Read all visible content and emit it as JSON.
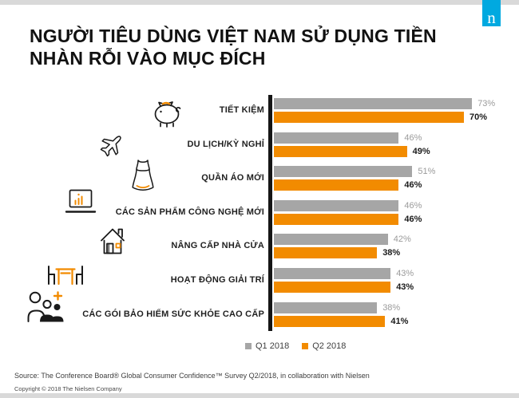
{
  "logo": {
    "letter": "n",
    "bg_color": "#00a9e0"
  },
  "title": {
    "line1": "NGƯỜI TIÊU DÙNG VIỆT NAM SỬ DỤNG TIỀN",
    "line2": "NHÀN RỖI VÀO MỤC ĐÍCH"
  },
  "chart_data": {
    "type": "bar",
    "orientation": "horizontal",
    "value_suffix": "%",
    "xlim": [
      0,
      100
    ],
    "grid": false,
    "legend_position": "bottom",
    "categories": [
      {
        "label": "TIẾT KIỆM",
        "icon": "piggy-bank"
      },
      {
        "label": "DU LỊCH/KỲ NGHỈ",
        "icon": "airplane"
      },
      {
        "label": "QUẦN ÁO MỚI",
        "icon": "dress"
      },
      {
        "label": "CÁC SẢN PHẨM CÔNG NGHỆ MỚI",
        "icon": "laptop-chart"
      },
      {
        "label": "NÂNG CẤP NHÀ CỬA",
        "icon": "house"
      },
      {
        "label": "HOẠT ĐỘNG GIẢI TRÍ",
        "icon": "table-chairs"
      },
      {
        "label": "CÁC GÓI BẢO HIỂM SỨC KHỎE CAO CẤP",
        "icon": "people-plus"
      }
    ],
    "series": [
      {
        "name": "Q1 2018",
        "color": "#a6a6a6",
        "values": [
          73,
          46,
          51,
          46,
          42,
          43,
          38
        ]
      },
      {
        "name": "Q2 2018",
        "color": "#f28b00",
        "values": [
          70,
          49,
          46,
          46,
          38,
          43,
          41
        ]
      }
    ]
  },
  "footer": {
    "source": "Source: The Conference Board® Global Consumer Confidence™ Survey Q2/2018, in collaboration with Nielsen",
    "copyright": "Copyright © 2018 The Nielsen Company"
  }
}
